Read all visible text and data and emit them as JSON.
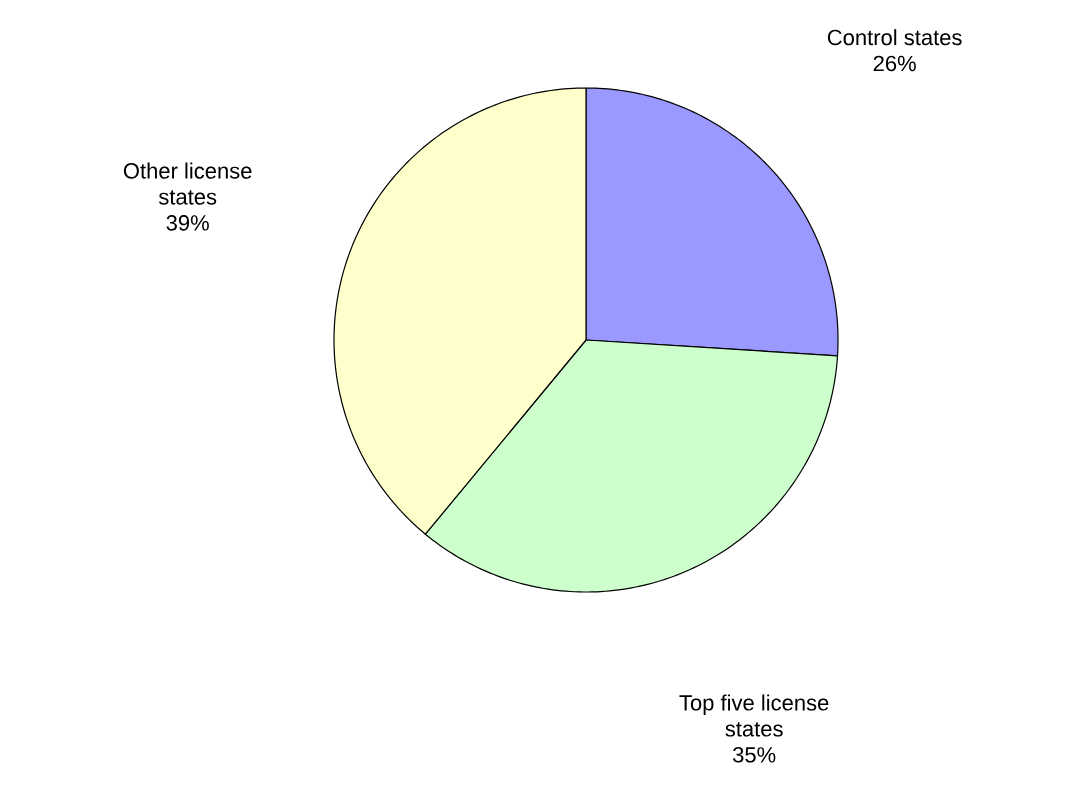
{
  "chart_data": {
    "type": "pie",
    "categories": [
      "Control states",
      "Top five license states",
      "Other license states"
    ],
    "values": [
      26,
      35,
      39
    ],
    "value_labels": [
      "26%",
      "35%",
      "39%"
    ],
    "colors": [
      "#9999ff",
      "#ccffcc",
      "#ffffcc"
    ]
  }
}
